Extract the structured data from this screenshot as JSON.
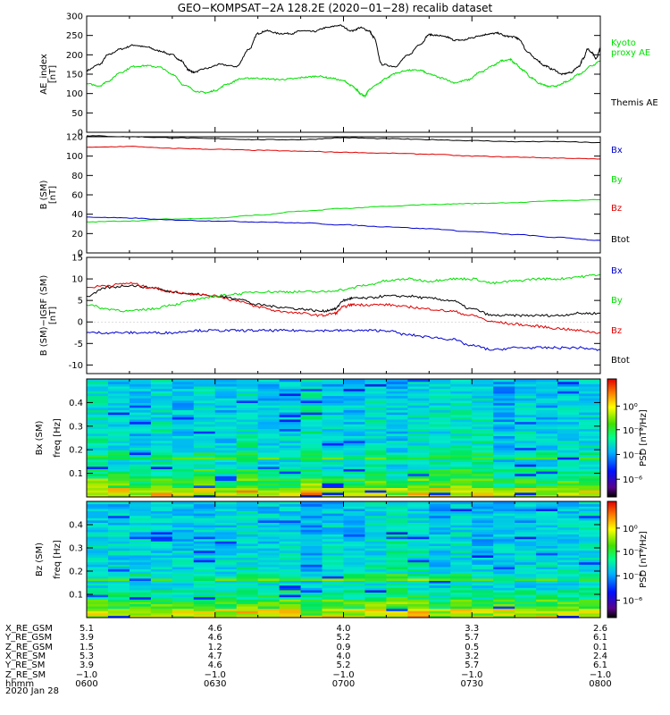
{
  "figure": {
    "title": "GEO−KOMPSAT−2A 128.2E (2020−01−28) recalib dataset",
    "date_label": "2020 Jan 28"
  },
  "colors": {
    "black": "#000000",
    "green": "#00e000",
    "red": "#e00000",
    "blue": "#0000d0"
  },
  "chart_data": [
    {
      "type": "line",
      "panel": "ae_index",
      "ylabel": "AE_index\n[nT]",
      "ylim": [
        0,
        300
      ],
      "yticks": [
        0,
        50,
        100,
        150,
        200,
        250,
        300
      ],
      "xlim": [
        0,
        120
      ],
      "series": [
        {
          "name": "Themis AE",
          "color": "black",
          "x": [
            0,
            3,
            5,
            8,
            11,
            14,
            17,
            20,
            22,
            24,
            25,
            28,
            31,
            35,
            38,
            40,
            42,
            45,
            48,
            50,
            53,
            56,
            59,
            62,
            64,
            66,
            67,
            69,
            72,
            75,
            78,
            80,
            82,
            84,
            86,
            88,
            90,
            92,
            94,
            96,
            98,
            100,
            101,
            103,
            105,
            107,
            109,
            111,
            113,
            115,
            116,
            117,
            118,
            119,
            120
          ],
          "y": [
            160,
            175,
            200,
            215,
            225,
            220,
            210,
            200,
            185,
            160,
            155,
            165,
            175,
            170,
            215,
            255,
            262,
            255,
            255,
            262,
            260,
            270,
            276,
            262,
            270,
            262,
            246,
            175,
            170,
            198,
            228,
            252,
            250,
            246,
            238,
            238,
            244,
            250,
            254,
            256,
            248,
            246,
            240,
            208,
            188,
            172,
            162,
            150,
            154,
            170,
            190,
            215,
            205,
            190,
            215
          ]
        },
        {
          "name": "Kyoto proxy AE",
          "color": "green",
          "x": [
            0,
            3,
            5,
            8,
            11,
            14,
            17,
            20,
            23,
            26,
            28,
            30,
            33,
            36,
            39,
            42,
            45,
            48,
            51,
            54,
            57,
            60,
            62,
            63,
            64,
            65,
            66,
            68,
            70,
            72,
            75,
            78,
            80,
            83,
            86,
            89,
            92,
            95,
            97,
            99,
            100,
            102,
            104,
            106,
            108,
            110,
            112,
            115,
            118,
            120
          ],
          "y": [
            125,
            120,
            132,
            155,
            170,
            172,
            168,
            150,
            120,
            105,
            102,
            108,
            125,
            138,
            140,
            138,
            136,
            138,
            142,
            145,
            140,
            133,
            120,
            110,
            100,
            93,
            110,
            125,
            140,
            152,
            160,
            160,
            150,
            140,
            128,
            135,
            155,
            172,
            185,
            188,
            178,
            160,
            140,
            125,
            118,
            120,
            130,
            150,
            172,
            185
          ]
        }
      ],
      "legend": [
        "Kyoto proxy AE",
        "Themis AE"
      ]
    },
    {
      "type": "line",
      "panel": "b_sm",
      "ylabel": "B (SM)\n[nT]",
      "ylim": [
        0,
        120
      ],
      "yticks": [
        0,
        20,
        40,
        60,
        80,
        100,
        120
      ],
      "xlim": [
        0,
        120
      ],
      "series": [
        {
          "name": "Btot",
          "color": "black",
          "x": [
            0,
            10,
            20,
            30,
            40,
            50,
            60,
            70,
            80,
            90,
            100,
            110,
            120
          ],
          "y": [
            121,
            120,
            119,
            118,
            117,
            117,
            119,
            118,
            117,
            116,
            115,
            115,
            114
          ]
        },
        {
          "name": "Bz",
          "color": "red",
          "x": [
            0,
            10,
            20,
            30,
            40,
            50,
            60,
            70,
            80,
            90,
            100,
            110,
            120
          ],
          "y": [
            109,
            110,
            108,
            107,
            106,
            105,
            104,
            103,
            102,
            100,
            99,
            98,
            97
          ]
        },
        {
          "name": "By",
          "color": "green",
          "x": [
            0,
            10,
            20,
            30,
            40,
            50,
            60,
            70,
            80,
            90,
            100,
            110,
            120
          ],
          "y": [
            32,
            33,
            35,
            36,
            39,
            43,
            46,
            48,
            50,
            51,
            52,
            54,
            55
          ]
        },
        {
          "name": "Bx",
          "color": "blue",
          "x": [
            0,
            10,
            20,
            30,
            40,
            50,
            60,
            70,
            80,
            90,
            100,
            110,
            120
          ],
          "y": [
            37,
            36,
            34,
            33,
            32,
            31,
            29,
            27,
            25,
            22,
            19,
            16,
            13
          ]
        }
      ],
      "legend": [
        "Bx",
        "By",
        "Bz",
        "Btot"
      ]
    },
    {
      "type": "line",
      "panel": "b_minus_igrf",
      "ylabel": "B (SM)−IGRF (SM)\n[nT]",
      "ylim": [
        -12,
        15
      ],
      "yticks": [
        -10,
        -5,
        0,
        5,
        10,
        15
      ],
      "xlim": [
        0,
        120
      ],
      "series": [
        {
          "name": "Btot",
          "color": "black",
          "x": [
            0,
            5,
            10,
            15,
            20,
            25,
            30,
            35,
            40,
            45,
            50,
            55,
            58,
            60,
            62,
            65,
            70,
            75,
            80,
            85,
            90,
            95,
            100,
            105,
            110,
            115,
            120
          ],
          "y": [
            6,
            8,
            8.5,
            8,
            7,
            6.5,
            6,
            5.5,
            4,
            3.5,
            3,
            2.5,
            3,
            5,
            5.5,
            5.5,
            6,
            6,
            5.5,
            5,
            3,
            1.5,
            1.5,
            1.5,
            1.5,
            2,
            2
          ]
        },
        {
          "name": "Bz",
          "color": "red",
          "x": [
            0,
            5,
            10,
            15,
            20,
            25,
            30,
            35,
            40,
            45,
            50,
            55,
            58,
            60,
            62,
            65,
            70,
            75,
            80,
            85,
            90,
            95,
            100,
            105,
            110,
            115,
            120
          ],
          "y": [
            8,
            8.5,
            9,
            8,
            7,
            6.5,
            6,
            5,
            3.5,
            2.5,
            2,
            1.5,
            2,
            3.5,
            4,
            4,
            4,
            3.5,
            3,
            2.5,
            1.5,
            0,
            -0.5,
            -1,
            -1.5,
            -2,
            -2.5
          ]
        },
        {
          "name": "By",
          "color": "green",
          "x": [
            0,
            5,
            10,
            15,
            20,
            25,
            30,
            35,
            40,
            45,
            50,
            55,
            60,
            65,
            70,
            75,
            80,
            85,
            90,
            95,
            100,
            105,
            110,
            115,
            120
          ],
          "y": [
            4,
            3,
            2.5,
            3,
            4,
            5,
            6,
            6.5,
            7,
            7,
            7,
            7,
            7.5,
            8.5,
            9.5,
            10,
            9.5,
            10,
            10,
            9,
            9.5,
            10,
            10,
            10.5,
            11
          ]
        },
        {
          "name": "Bx",
          "color": "blue",
          "x": [
            0,
            5,
            10,
            15,
            20,
            25,
            30,
            35,
            40,
            45,
            50,
            55,
            60,
            65,
            70,
            75,
            80,
            85,
            90,
            95,
            100,
            105,
            110,
            115,
            120
          ],
          "y": [
            -2.5,
            -2.5,
            -2.5,
            -2.5,
            -2.5,
            -2,
            -2,
            -2,
            -2,
            -2,
            -2,
            -2,
            -2,
            -2,
            -2,
            -3,
            -3.5,
            -4,
            -5.5,
            -6.5,
            -6,
            -6,
            -6,
            -6,
            -6.5
          ]
        }
      ],
      "legend": [
        "Bx",
        "By",
        "Bz",
        "Btot"
      ]
    },
    {
      "type": "heatmap",
      "panel": "bx_spectrogram",
      "ylabel_outer": "Bx (SM)",
      "ylabel_inner": "freq  [Hz]",
      "ylim": [
        0,
        0.5
      ],
      "yticks": [
        0.1,
        0.2,
        0.3,
        0.4
      ],
      "colorbar_label": "PSD  [nT²/Hz]",
      "colorbar_ticks": [
        "10⁰",
        "10⁻²",
        "10⁻⁴",
        "10⁻⁶"
      ],
      "xlim": [
        0,
        120
      ]
    },
    {
      "type": "heatmap",
      "panel": "bz_spectrogram",
      "ylabel_outer": "Bz (SM)",
      "ylabel_inner": "freq  [Hz]",
      "ylim": [
        0,
        0.5
      ],
      "yticks": [
        0.1,
        0.2,
        0.3,
        0.4
      ],
      "colorbar_label": "PSD  [nT²/Hz]",
      "colorbar_ticks": [
        "10⁰",
        "10⁻²",
        "10⁻⁴",
        "10⁻⁶"
      ],
      "xlim": [
        0,
        120
      ]
    }
  ],
  "legends": {
    "ae": [
      {
        "text": "Kyoto\nproxy AE",
        "color": "green"
      },
      {
        "text": "Themis AE",
        "color": "black"
      }
    ],
    "b": [
      {
        "text": "Bx",
        "color": "blue"
      },
      {
        "text": "By",
        "color": "green"
      },
      {
        "text": "Bz",
        "color": "red"
      },
      {
        "text": "Btot",
        "color": "black"
      }
    ],
    "d": [
      {
        "text": "Bx",
        "color": "blue"
      },
      {
        "text": "By",
        "color": "green"
      },
      {
        "text": "Bz",
        "color": "red"
      },
      {
        "text": "Btot",
        "color": "black"
      }
    ]
  },
  "orbit_table": {
    "row_labels": [
      "X_RE_GSM",
      "Y_RE_GSM",
      "Z_RE_GSM",
      "X_RE_SM",
      "Y_RE_SM",
      "Z_RE_SM",
      "hhmm"
    ],
    "columns": [
      [
        "5.1",
        "3.9",
        "1.5",
        "5.3",
        "3.9",
        "−1.0",
        "0600"
      ],
      [
        "4.6",
        "4.6",
        "1.2",
        "4.7",
        "4.6",
        "−1.0",
        "0630"
      ],
      [
        "4.0",
        "5.2",
        "0.9",
        "4.0",
        "5.2",
        "−1.0",
        "0700"
      ],
      [
        "3.3",
        "5.7",
        "0.5",
        "3.2",
        "5.7",
        "−1.0",
        "0730"
      ],
      [
        "2.6",
        "6.1",
        "0.1",
        "2.4",
        "6.1",
        "−1.0",
        "0800"
      ]
    ]
  }
}
